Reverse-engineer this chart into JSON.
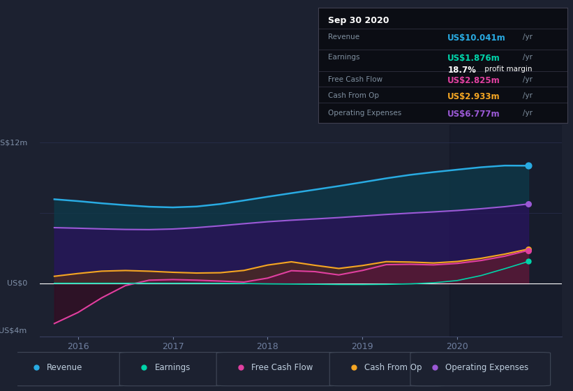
{
  "bg_color": "#1c2130",
  "plot_bg_color": "#1c2130",
  "ylim": [
    -4.5,
    13.5
  ],
  "xlim": [
    2015.6,
    2021.1
  ],
  "xticks": [
    2016,
    2017,
    2018,
    2019,
    2020
  ],
  "grid_color": "#2a3050",
  "zero_line_color": "#ffffff",
  "series_colors": {
    "revenue": "#29abe2",
    "earnings": "#00d4aa",
    "free_cash_flow": "#e040a0",
    "cash_from_op": "#f5a623",
    "operating_expenses": "#9b59d6"
  },
  "x_data": [
    2015.75,
    2016.0,
    2016.25,
    2016.5,
    2016.75,
    2017.0,
    2017.25,
    2017.5,
    2017.75,
    2018.0,
    2018.25,
    2018.5,
    2018.75,
    2019.0,
    2019.25,
    2019.5,
    2019.75,
    2020.0,
    2020.25,
    2020.5,
    2020.75
  ],
  "revenue": [
    7.3,
    7.0,
    6.8,
    6.7,
    6.5,
    6.4,
    6.5,
    6.7,
    7.1,
    7.4,
    7.7,
    8.0,
    8.3,
    8.6,
    9.0,
    9.3,
    9.5,
    9.7,
    9.9,
    10.2,
    10.041
  ],
  "operating_expenses": [
    4.8,
    4.7,
    4.65,
    4.6,
    4.55,
    4.6,
    4.75,
    4.9,
    5.1,
    5.3,
    5.4,
    5.5,
    5.6,
    5.75,
    5.9,
    6.0,
    6.1,
    6.2,
    6.35,
    6.55,
    6.777
  ],
  "cash_from_op": [
    0.5,
    0.9,
    1.1,
    1.15,
    1.05,
    0.95,
    0.85,
    0.9,
    0.95,
    1.6,
    2.2,
    1.5,
    1.0,
    1.5,
    2.1,
    1.8,
    1.65,
    1.85,
    2.1,
    2.5,
    2.933
  ],
  "free_cash_flow": [
    -3.8,
    -2.5,
    -1.2,
    0.1,
    0.4,
    0.35,
    0.25,
    0.3,
    -0.05,
    0.15,
    1.6,
    1.1,
    0.3,
    1.1,
    1.9,
    1.6,
    1.5,
    1.7,
    1.9,
    2.3,
    2.825
  ],
  "earnings": [
    0.02,
    0.02,
    0.02,
    0.02,
    0.02,
    0.02,
    0.02,
    0.02,
    0.01,
    -0.05,
    -0.05,
    -0.06,
    -0.1,
    -0.1,
    -0.08,
    -0.06,
    0.05,
    0.15,
    0.6,
    1.3,
    1.876
  ],
  "info_box": {
    "date": "Sep 30 2020",
    "revenue_val": "US$10.041m",
    "earnings_val": "US$1.876m",
    "profit_margin": "18.7%",
    "fcf_val": "US$2.825m",
    "cash_from_op_val": "US$2.933m",
    "op_expenses_val": "US$6.777m"
  },
  "legend": [
    {
      "label": "Revenue",
      "color": "#29abe2"
    },
    {
      "label": "Earnings",
      "color": "#00d4aa"
    },
    {
      "label": "Free Cash Flow",
      "color": "#e040a0"
    },
    {
      "label": "Cash From Op",
      "color": "#f5a623"
    },
    {
      "label": "Operating Expenses",
      "color": "#9b59d6"
    }
  ]
}
